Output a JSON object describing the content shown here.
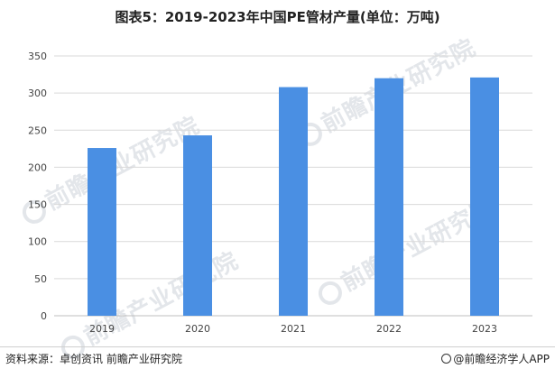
{
  "title": "图表5：2019-2023年中国PE管材产量(单位：万吨)",
  "watermark": "前瞻产业研究院",
  "footer": {
    "source": "资料来源：卓创资讯 前瞻产业研究院",
    "brand": "@前瞻经济学人APP"
  },
  "chart_data": {
    "type": "bar",
    "categories": [
      "2019",
      "2020",
      "2021",
      "2022",
      "2023"
    ],
    "values": [
      226,
      243,
      308,
      320,
      321
    ],
    "ylim": [
      0,
      350
    ],
    "yticks": [
      0,
      50,
      100,
      150,
      200,
      250,
      300,
      350
    ],
    "grid": true,
    "bar_color": "#4a8fe3",
    "grid_color": "#d9d9d9"
  }
}
